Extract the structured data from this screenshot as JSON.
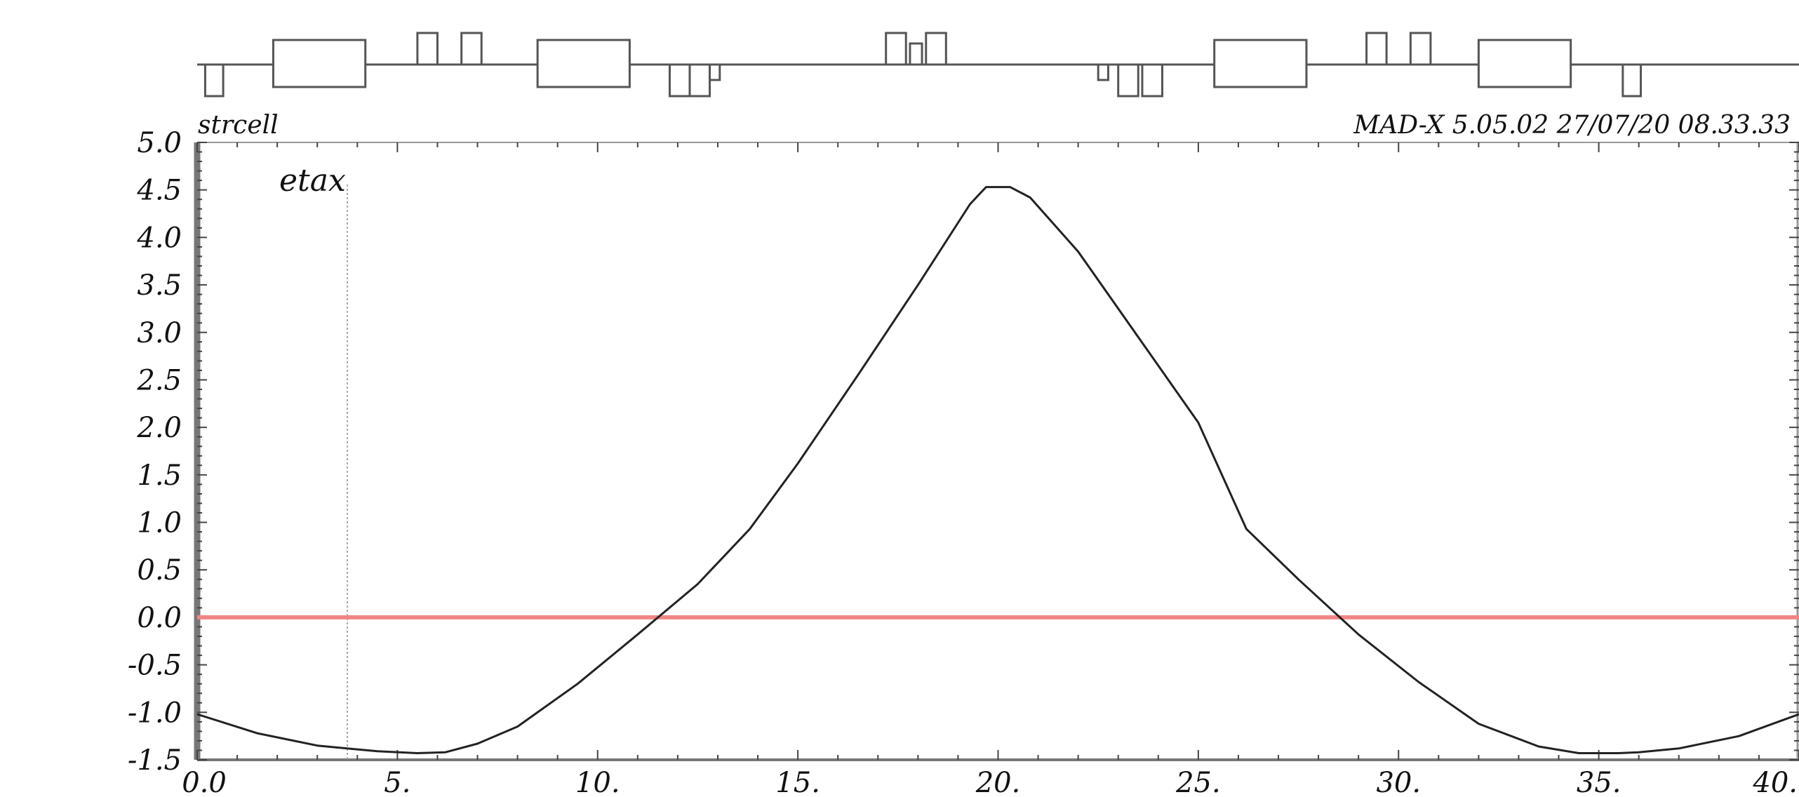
{
  "header": {
    "left": "strcell",
    "right": "MAD-X 5.05.02   27/07/20 08.33.33"
  },
  "chart_data": {
    "type": "line",
    "title": "",
    "xlabel": "",
    "ylabel": "",
    "xlim": [
      0,
      40
    ],
    "ylim": [
      -1.5,
      5.0
    ],
    "x_ticks": [
      "0.0",
      "5.",
      "10.",
      "15.",
      "20.",
      "25.",
      "30.",
      "35.",
      "40."
    ],
    "y_ticks": [
      "5.0",
      "4.5",
      "4.0",
      "3.5",
      "3.0",
      "2.5",
      "2.0",
      "1.5",
      "1.0",
      "0.5",
      "0.0",
      "-0.5",
      "-1.0",
      "-1.5"
    ],
    "series": [
      {
        "name": "etax",
        "color": "#222222",
        "x": [
          0.0,
          1.5,
          3.0,
          4.5,
          5.5,
          6.2,
          7.0,
          8.0,
          9.5,
          11.0,
          12.5,
          13.8,
          15.0,
          16.5,
          18.0,
          19.3,
          19.7,
          20.3,
          20.8,
          22.0,
          23.5,
          25.0,
          26.2,
          27.5,
          29.0,
          30.5,
          32.0,
          33.5,
          34.5,
          35.5,
          36.0,
          37.0,
          38.5,
          40.0
        ],
        "y": [
          -1.02,
          -1.22,
          -1.35,
          -1.41,
          -1.43,
          -1.42,
          -1.33,
          -1.15,
          -0.7,
          -0.18,
          0.35,
          0.93,
          1.62,
          2.55,
          3.5,
          4.35,
          4.53,
          4.53,
          4.42,
          3.85,
          2.95,
          2.05,
          0.93,
          0.4,
          -0.18,
          -0.68,
          -1.12,
          -1.36,
          -1.43,
          -1.43,
          -1.42,
          -1.38,
          -1.25,
          -1.02
        ]
      }
    ],
    "reference_line": {
      "y": 0.0,
      "color": "#f08585"
    },
    "marker_x": 3.75,
    "lattice": {
      "line_color": "#555555",
      "elements": [
        {
          "kind": "quad",
          "s": 0.2,
          "l": 0.45,
          "dir": "down"
        },
        {
          "kind": "dipole",
          "s": 1.9,
          "l": 2.3
        },
        {
          "kind": "quad",
          "s": 5.5,
          "l": 0.5,
          "dir": "up"
        },
        {
          "kind": "quad",
          "s": 6.6,
          "l": 0.5,
          "dir": "up"
        },
        {
          "kind": "dipole",
          "s": 8.5,
          "l": 2.3
        },
        {
          "kind": "quad",
          "s": 11.8,
          "l": 0.5,
          "dir": "down"
        },
        {
          "kind": "quad",
          "s": 12.3,
          "l": 0.5,
          "dir": "down"
        },
        {
          "kind": "quad",
          "s": 12.8,
          "l": 0.25,
          "dir": "down"
        },
        {
          "kind": "quad",
          "s": 17.2,
          "l": 0.5,
          "dir": "up"
        },
        {
          "kind": "quad",
          "s": 17.8,
          "l": 0.3,
          "dir": "up"
        },
        {
          "kind": "quad",
          "s": 18.2,
          "l": 0.5,
          "dir": "up"
        },
        {
          "kind": "quad",
          "s": 22.5,
          "l": 0.25,
          "dir": "down"
        },
        {
          "kind": "quad",
          "s": 23.0,
          "l": 0.5,
          "dir": "down"
        },
        {
          "kind": "quad",
          "s": 23.6,
          "l": 0.5,
          "dir": "down"
        },
        {
          "kind": "dipole",
          "s": 25.4,
          "l": 2.3
        },
        {
          "kind": "quad",
          "s": 29.2,
          "l": 0.5,
          "dir": "up"
        },
        {
          "kind": "quad",
          "s": 30.3,
          "l": 0.5,
          "dir": "up"
        },
        {
          "kind": "dipole",
          "s": 32.0,
          "l": 2.3
        },
        {
          "kind": "quad",
          "s": 35.6,
          "l": 0.45,
          "dir": "down"
        }
      ]
    }
  }
}
